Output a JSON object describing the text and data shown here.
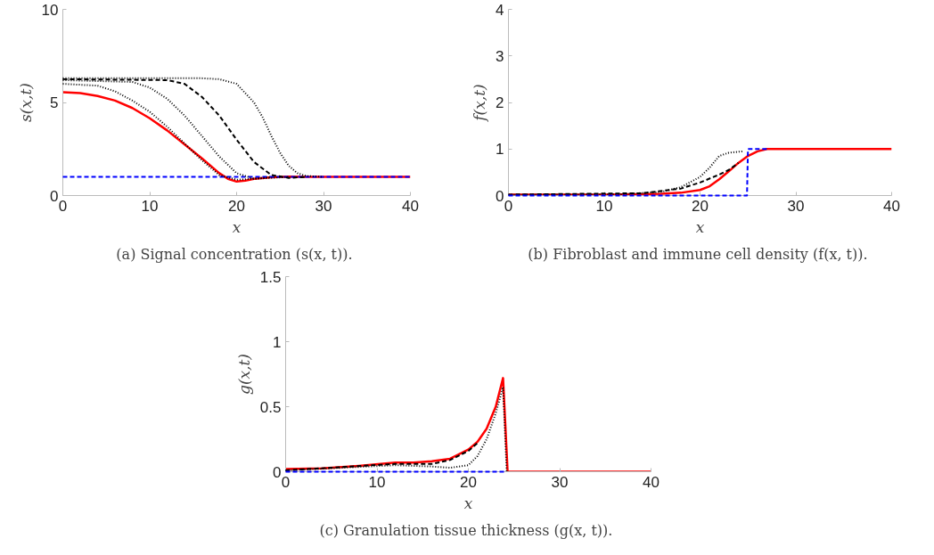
{
  "chart_data": [
    {
      "type": "line",
      "xlabel": "x",
      "ylabel": "s(x,t)",
      "xlim": [
        0,
        40
      ],
      "ylim": [
        0,
        10
      ],
      "xticks": [
        0,
        10,
        20,
        30,
        40
      ],
      "yticks": [
        0,
        5,
        10
      ],
      "grid": false,
      "annotations": [
        "(a)  Signal concentration (s(x, t))."
      ],
      "series": [
        {
          "color": "#0000ff",
          "line_style": "dashed",
          "x": [
            0,
            40
          ],
          "values": [
            1,
            1
          ]
        },
        {
          "color": "#000000",
          "line_style": "dotted",
          "x": [
            0,
            16,
            18,
            20,
            22,
            23,
            24,
            25,
            26,
            27,
            28,
            30
          ],
          "values": [
            6.3,
            6.3,
            6.25,
            6.0,
            5.0,
            4.2,
            3.2,
            2.3,
            1.6,
            1.2,
            1.05,
            1.0
          ]
        },
        {
          "color": "#000000",
          "line_style": "dashed",
          "x": [
            0,
            12,
            14,
            16,
            18,
            20,
            22,
            24,
            26,
            28
          ],
          "values": [
            6.25,
            6.2,
            6.0,
            5.3,
            4.3,
            3.0,
            1.8,
            1.1,
            0.95,
            1.0
          ]
        },
        {
          "color": "#000000",
          "line_style": "dotted",
          "x": [
            0,
            8,
            10,
            12,
            14,
            16,
            18,
            20,
            22,
            24,
            26
          ],
          "values": [
            6.2,
            6.1,
            5.8,
            5.2,
            4.3,
            3.2,
            2.1,
            1.2,
            0.9,
            0.95,
            1.0
          ]
        },
        {
          "color": "#000000",
          "line_style": "dotted",
          "x": [
            0,
            4,
            6,
            8,
            10,
            12,
            14,
            16,
            18,
            20,
            22,
            24
          ],
          "values": [
            6.0,
            5.9,
            5.6,
            5.1,
            4.5,
            3.7,
            2.8,
            1.9,
            1.1,
            0.85,
            0.9,
            1.0
          ]
        },
        {
          "color": "#ff0000",
          "line_style": "solid",
          "x": [
            0,
            2,
            4,
            6,
            8,
            10,
            12,
            14,
            16,
            18,
            19,
            20,
            21,
            22,
            24,
            26,
            28,
            30,
            40
          ],
          "values": [
            5.55,
            5.5,
            5.35,
            5.1,
            4.7,
            4.15,
            3.5,
            2.75,
            2.0,
            1.2,
            0.9,
            0.75,
            0.8,
            0.9,
            0.98,
            1.02,
            1.0,
            1.0,
            1.0
          ]
        }
      ]
    },
    {
      "type": "line",
      "xlabel": "x",
      "ylabel": "f(x,t)",
      "xlim": [
        0,
        40
      ],
      "ylim": [
        0,
        4
      ],
      "xticks": [
        0,
        10,
        20,
        30,
        40
      ],
      "yticks": [
        0,
        1,
        2,
        3,
        4
      ],
      "grid": false,
      "annotations": [
        "(b)  Fibroblast and immune cell density (f(x, t))."
      ],
      "series": [
        {
          "color": "#000000",
          "line_style": "dotted",
          "x": [
            0,
            12,
            16,
            18,
            20,
            21,
            22,
            23,
            24.5
          ],
          "values": [
            0.02,
            0.03,
            0.08,
            0.18,
            0.4,
            0.6,
            0.85,
            0.92,
            0.95
          ]
        },
        {
          "color": "#000000",
          "line_style": "dashed",
          "x": [
            0,
            14,
            18,
            20,
            22,
            23,
            24
          ],
          "values": [
            0.02,
            0.05,
            0.15,
            0.28,
            0.45,
            0.55,
            0.7
          ]
        },
        {
          "color": "#ff0000",
          "line_style": "solid",
          "x": [
            0,
            10,
            14,
            16,
            18,
            20,
            21,
            22,
            23,
            24,
            25,
            26,
            27,
            28,
            40
          ],
          "values": [
            0.02,
            0.02,
            0.03,
            0.04,
            0.06,
            0.12,
            0.2,
            0.35,
            0.52,
            0.7,
            0.85,
            0.95,
            1.0,
            1.0,
            1.0
          ]
        },
        {
          "color": "#0000ff",
          "line_style": "dashed",
          "x": [
            0,
            24.9,
            25,
            27
          ],
          "values": [
            0,
            0,
            1,
            1
          ]
        }
      ]
    },
    {
      "type": "line",
      "xlabel": "x",
      "ylabel": "g(x,t)",
      "xlim": [
        0,
        40
      ],
      "ylim": [
        0,
        1.5
      ],
      "xticks": [
        0,
        10,
        20,
        30,
        40
      ],
      "yticks": [
        0,
        0.5,
        1,
        1.5
      ],
      "grid": false,
      "annotations": [
        "(c)  Granulation tissue thickness (g(x, t))."
      ],
      "series": [
        {
          "color": "#000000",
          "line_style": "dotted",
          "x": [
            0,
            12,
            16,
            18,
            20,
            21,
            22,
            23,
            23.8,
            24.2
          ],
          "values": [
            0.01,
            0.05,
            0.04,
            0.03,
            0.05,
            0.12,
            0.25,
            0.45,
            0.65,
            0
          ]
        },
        {
          "color": "#000000",
          "line_style": "dashed",
          "x": [
            0,
            12,
            16,
            18,
            20,
            21
          ],
          "values": [
            0.01,
            0.06,
            0.06,
            0.09,
            0.16,
            0.22
          ]
        },
        {
          "color": "#ff0000",
          "line_style": "solid",
          "x": [
            0,
            4,
            8,
            12,
            14,
            16,
            18,
            20,
            21,
            22,
            23,
            23.8,
            24.3,
            40
          ],
          "values": [
            0.02,
            0.025,
            0.045,
            0.07,
            0.07,
            0.08,
            0.1,
            0.17,
            0.23,
            0.33,
            0.5,
            0.72,
            0,
            0
          ]
        },
        {
          "color": "#0000ff",
          "line_style": "dashed",
          "x": [
            0,
            24
          ],
          "values": [
            0,
            0
          ]
        }
      ]
    }
  ]
}
